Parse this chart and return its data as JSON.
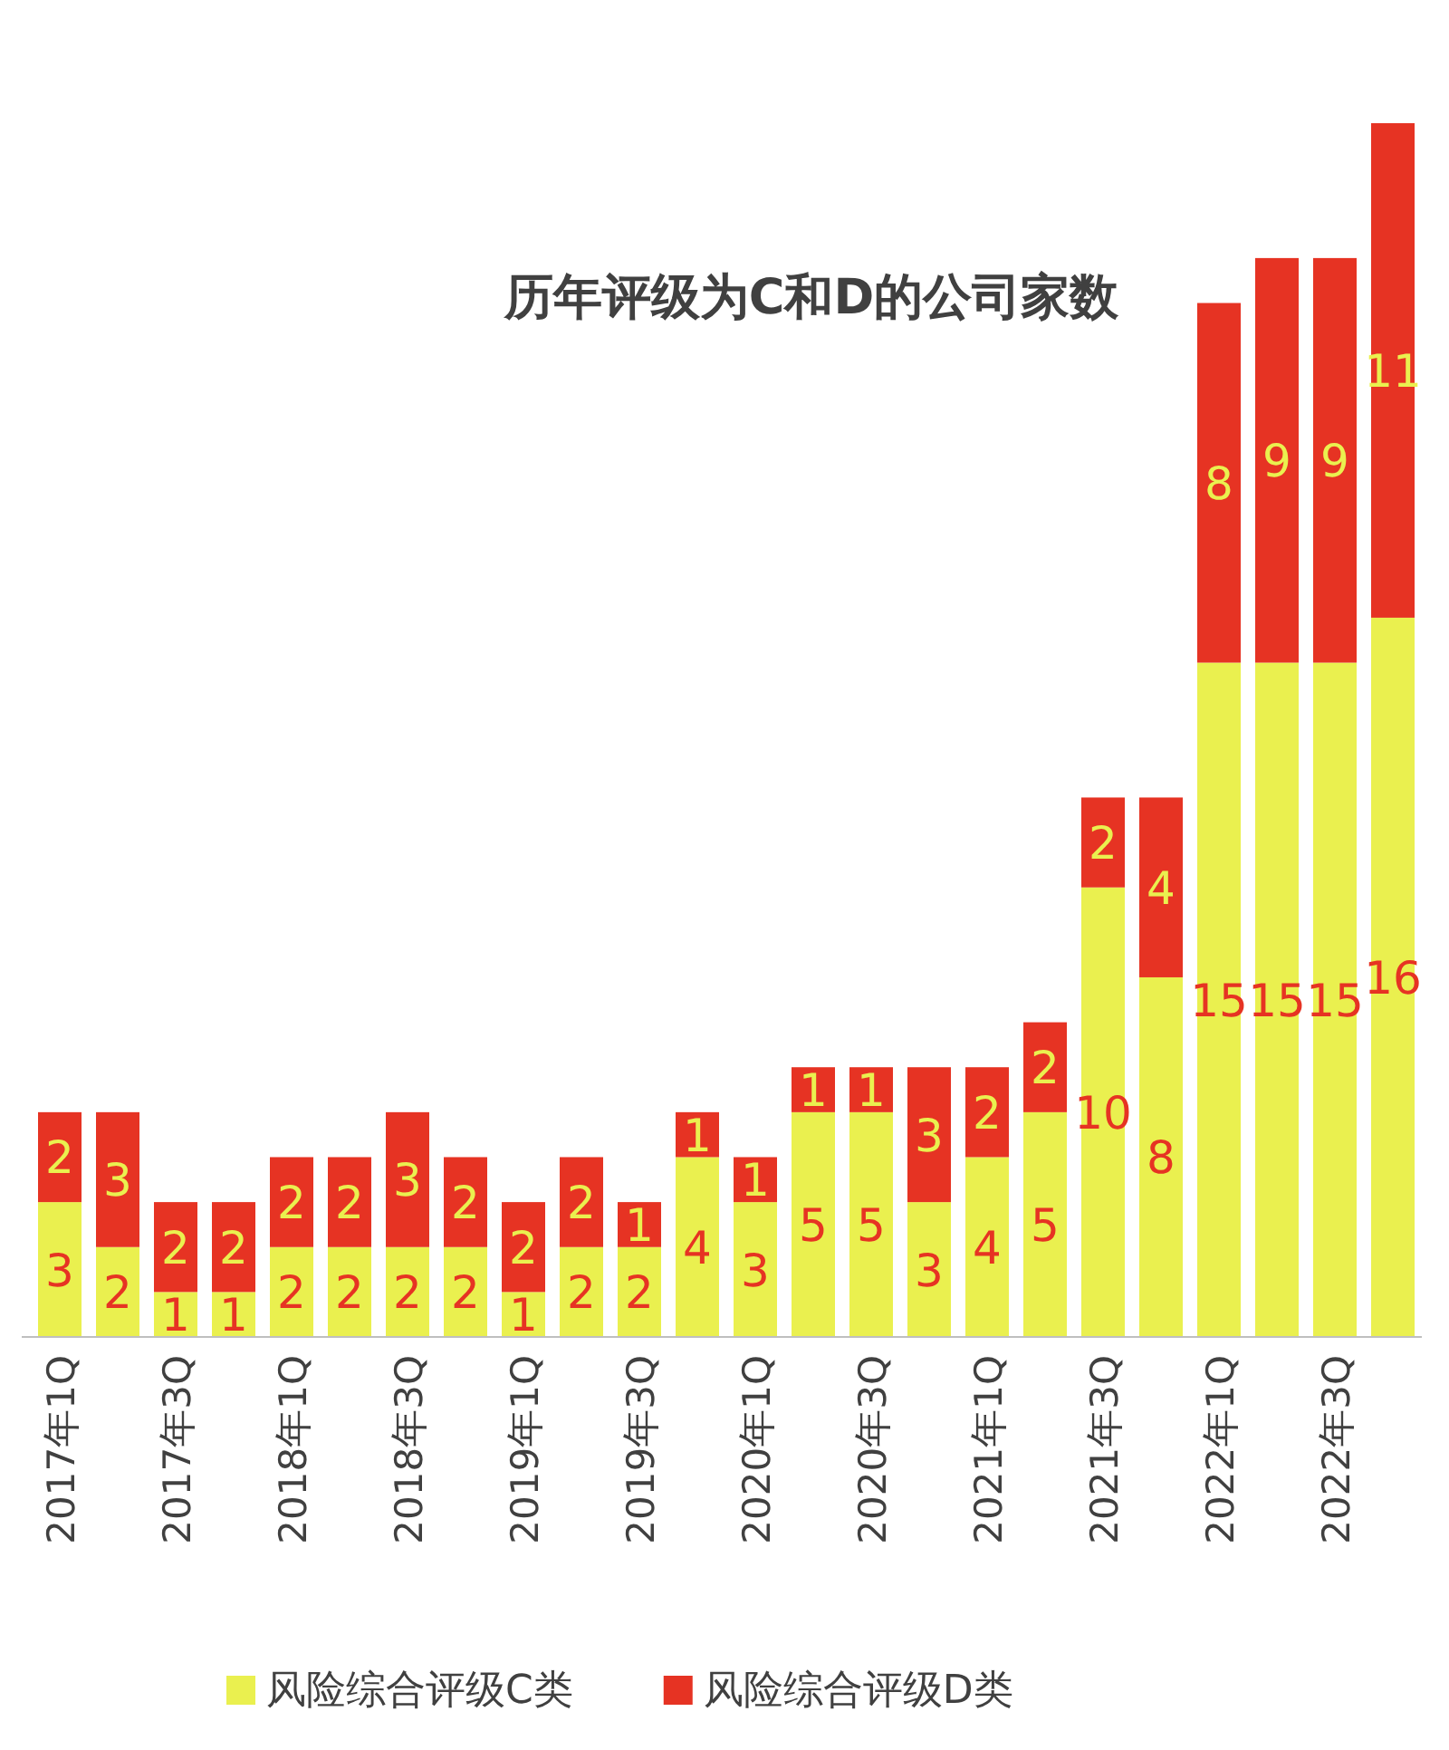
{
  "chart_data": {
    "type": "bar",
    "stacked": true,
    "title": "历年评级为C和D的公司家数",
    "data_labels": true,
    "legend": "bottom",
    "categories": [
      "2017年1Q",
      null,
      "2017年3Q",
      null,
      "2018年1Q",
      null,
      "2018年3Q",
      null,
      "2019年1Q",
      null,
      "2019年3Q",
      null,
      "2020年1Q",
      null,
      "2020年3Q",
      null,
      "2021年1Q",
      null,
      "2021年3Q",
      null,
      "2022年1Q",
      null,
      "2022年3Q",
      null
    ],
    "series": [
      {
        "name": "风险综合评级C类",
        "color": "#eaf04f",
        "values": [
          3,
          2,
          1,
          1,
          2,
          2,
          2,
          2,
          1,
          2,
          2,
          4,
          3,
          5,
          5,
          3,
          4,
          5,
          10,
          8,
          15,
          15,
          15,
          16
        ]
      },
      {
        "name": "风险综合评级D类",
        "color": "#e63323",
        "values": [
          2,
          3,
          2,
          2,
          2,
          2,
          3,
          2,
          2,
          2,
          1,
          1,
          1,
          1,
          1,
          3,
          2,
          2,
          2,
          4,
          8,
          9,
          9,
          11
        ]
      }
    ]
  }
}
